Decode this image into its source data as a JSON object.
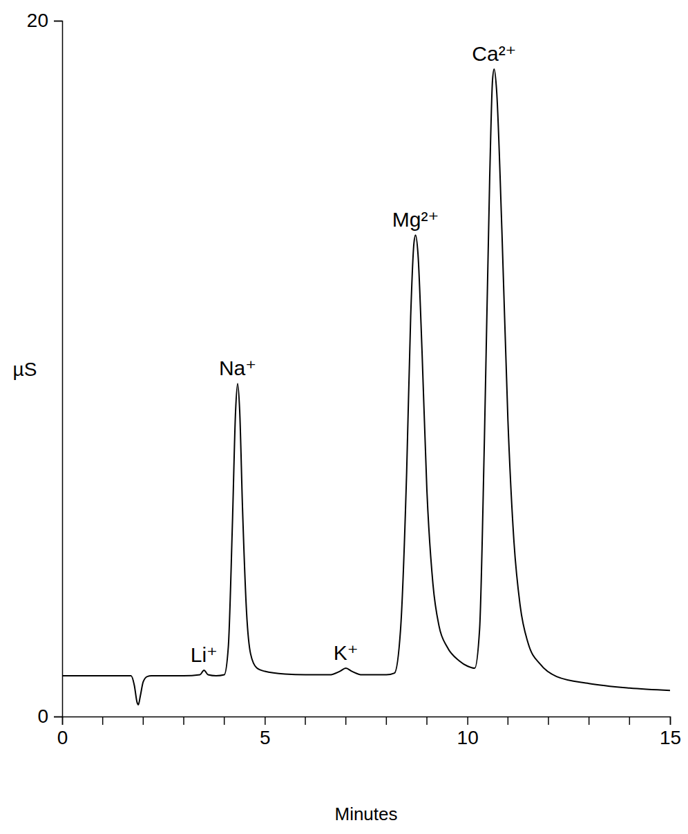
{
  "chart_data": {
    "type": "line",
    "x_label": "Minutes",
    "y_label": "µS",
    "x": [
      0,
      1.0,
      1.7,
      1.78,
      1.85,
      1.88,
      1.93,
      2.0,
      2.1,
      2.2,
      3.0,
      3.4,
      3.5,
      3.6,
      3.8,
      4.0,
      4.1,
      4.2,
      4.28,
      4.33,
      4.38,
      4.45,
      4.55,
      4.65,
      4.8,
      5.0,
      5.5,
      6.0,
      6.6,
      6.85,
      7.0,
      7.15,
      7.4,
      8.0,
      8.2,
      8.35,
      8.5,
      8.6,
      8.68,
      8.72,
      8.78,
      8.88,
      9.0,
      9.15,
      9.3,
      9.5,
      9.8,
      10.0,
      10.18,
      10.3,
      10.42,
      10.55,
      10.62,
      10.66,
      10.72,
      10.85,
      11.0,
      11.15,
      11.3,
      11.5,
      11.8,
      12.2,
      13.0,
      14.0,
      15.0
    ],
    "values": [
      1.17,
      1.17,
      1.17,
      0.9,
      0.4,
      0.34,
      0.6,
      1.0,
      1.15,
      1.17,
      1.17,
      1.2,
      1.33,
      1.2,
      1.17,
      1.2,
      2.0,
      5.5,
      8.8,
      9.57,
      8.8,
      6.0,
      3.0,
      1.8,
      1.4,
      1.3,
      1.22,
      1.2,
      1.2,
      1.3,
      1.39,
      1.3,
      1.2,
      1.2,
      1.25,
      2.5,
      7.0,
      11.5,
      13.6,
      13.84,
      13.3,
      10.5,
      6.5,
      3.8,
      2.6,
      2.0,
      1.6,
      1.45,
      1.39,
      2.5,
      8.0,
      15.5,
      18.3,
      18.61,
      18.0,
      14.0,
      8.5,
      5.0,
      3.2,
      2.1,
      1.5,
      1.15,
      0.95,
      0.82,
      0.75
    ],
    "color": "#000000",
    "xlim": [
      0,
      15
    ],
    "xticks": [
      0,
      5,
      10,
      15
    ],
    "x_minor_ticks": [
      1,
      2,
      3,
      4,
      6,
      7,
      8,
      9,
      11,
      12,
      13,
      14
    ],
    "ylim": [
      0,
      20
    ],
    "yticks": [
      0,
      20
    ],
    "grid": false,
    "annotations": [
      {
        "text": "Li⁺",
        "x": 3.5,
        "y": 1.33
      },
      {
        "text": "Na⁺",
        "x": 4.33,
        "y": 9.57
      },
      {
        "text": "K⁺",
        "x": 7.0,
        "y": 1.39
      },
      {
        "text": "Mg²⁺",
        "x": 8.72,
        "y": 13.84
      },
      {
        "text": "Ca²⁺",
        "x": 10.66,
        "y": 18.61
      }
    ]
  }
}
